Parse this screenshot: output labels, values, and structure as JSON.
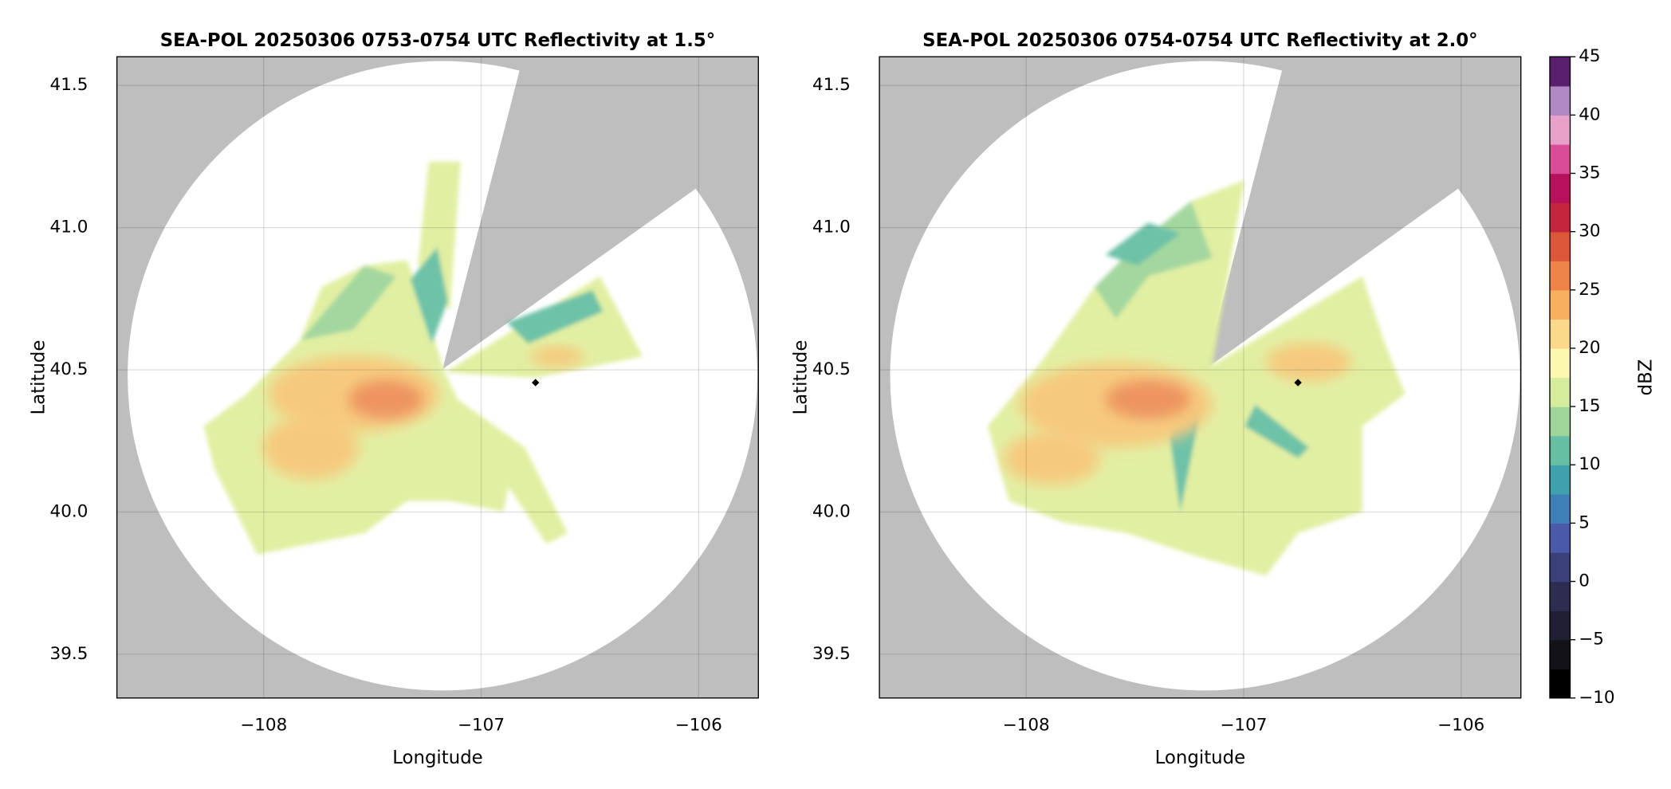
{
  "chart_data": [
    {
      "type": "radar",
      "title": "SEA-POL 20250306 0753-0754 UTC Reflectivity at 1.5°",
      "x_label": "Longitude",
      "y_label": "Latitude",
      "xlim": [
        -108.675,
        -105.725
      ],
      "ylim": [
        39.346,
        41.601
      ],
      "xticks": [
        {
          "value": -108,
          "label": "−108"
        },
        {
          "value": -107,
          "label": "−107"
        },
        {
          "value": -106,
          "label": "−106"
        }
      ],
      "yticks": [
        {
          "value": 39.5,
          "label": "39.5"
        },
        {
          "value": 40.0,
          "label": "40.0"
        },
        {
          "value": 40.5,
          "label": "40.5"
        },
        {
          "value": 41.0,
          "label": "41.0"
        },
        {
          "value": 41.5,
          "label": "41.5"
        }
      ],
      "grid": true,
      "marker": {
        "x": [
          -106.75
        ],
        "y": [
          40.455
        ],
        "color": "#000000"
      }
    },
    {
      "type": "radar",
      "title": "SEA-POL 20250306 0754-0754 UTC Reflectivity at 2.0°",
      "x_label": "Longitude",
      "y_label": "Latitude",
      "xlim": [
        -108.675,
        -105.725
      ],
      "ylim": [
        39.346,
        41.601
      ],
      "xticks": [
        {
          "value": -108,
          "label": "−108"
        },
        {
          "value": -107,
          "label": "−107"
        },
        {
          "value": -106,
          "label": "−106"
        }
      ],
      "yticks": [
        {
          "value": 39.5,
          "label": "39.5"
        },
        {
          "value": 40.0,
          "label": "40.0"
        },
        {
          "value": 40.5,
          "label": "40.5"
        },
        {
          "value": 41.0,
          "label": "41.0"
        },
        {
          "value": 41.5,
          "label": "41.5"
        }
      ],
      "grid": true,
      "marker": {
        "x": [
          -106.75
        ],
        "y": [
          40.455
        ],
        "color": "#000000"
      },
      "colorbar": {
        "label": "dBZ",
        "lim": [
          -10,
          45
        ],
        "ticks": [
          {
            "value": -10,
            "label": "−10"
          },
          {
            "value": -5,
            "label": "−5"
          },
          0,
          5,
          10,
          15,
          20,
          25,
          30,
          35,
          40,
          45
        ],
        "colors": [
          "#000000",
          "#121218",
          "#1f1f33",
          "#2d2d52",
          "#3b3f7a",
          "#4a5aa8",
          "#3f7fb8",
          "#3fa0b0",
          "#66bfa4",
          "#9fd59a",
          "#d4ec9c",
          "#fbf8b0",
          "#fbd88a",
          "#f6b060",
          "#ee8448",
          "#dc5638",
          "#c2253c",
          "#b8105a",
          "#d84c98",
          "#e9a0c8",
          "#b088c4",
          "#5a2070"
        ]
      }
    }
  ]
}
